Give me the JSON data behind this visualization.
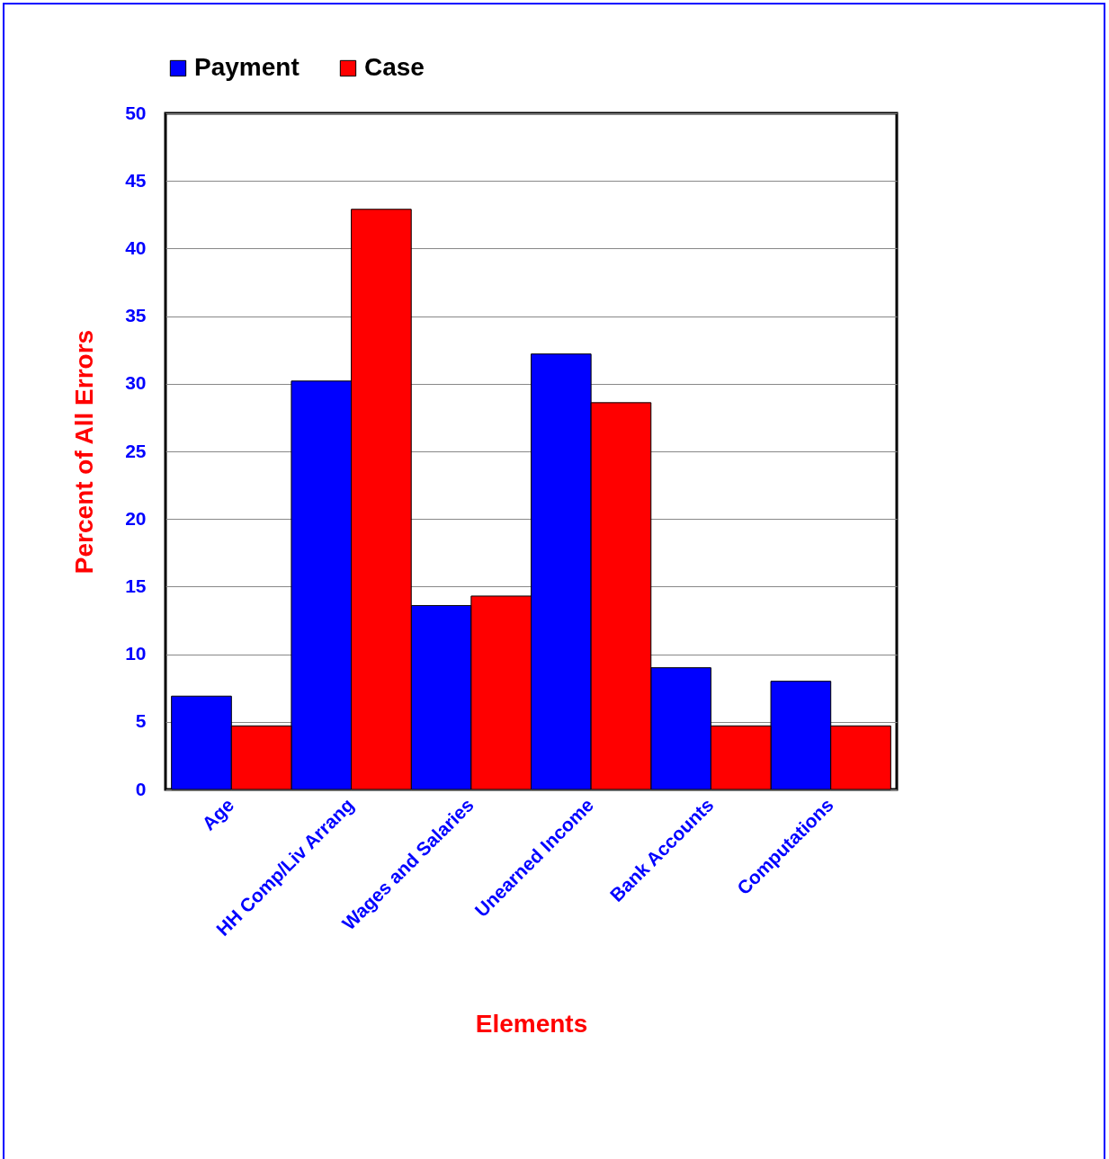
{
  "chart_data": {
    "type": "bar",
    "xlabel": "Elements",
    "ylabel": "Percent of All Errors",
    "categories": [
      "Age",
      "HH Comp/Liv Arrang",
      "Wages and Salaries",
      "Unearned Income",
      "Bank Accounts",
      "Computations"
    ],
    "series": [
      {
        "name": "Payment",
        "color": "#0000ff",
        "values": [
          6.9,
          30.2,
          13.6,
          32.2,
          9.0,
          8.0
        ]
      },
      {
        "name": "Case",
        "color": "#ff0000",
        "values": [
          4.7,
          42.9,
          14.3,
          28.6,
          4.7,
          4.7
        ]
      }
    ],
    "ylim": [
      0,
      50
    ],
    "yticks": [
      0,
      5,
      10,
      15,
      20,
      25,
      30,
      35,
      40,
      45,
      50
    ],
    "grid": "y",
    "legend": "top"
  }
}
